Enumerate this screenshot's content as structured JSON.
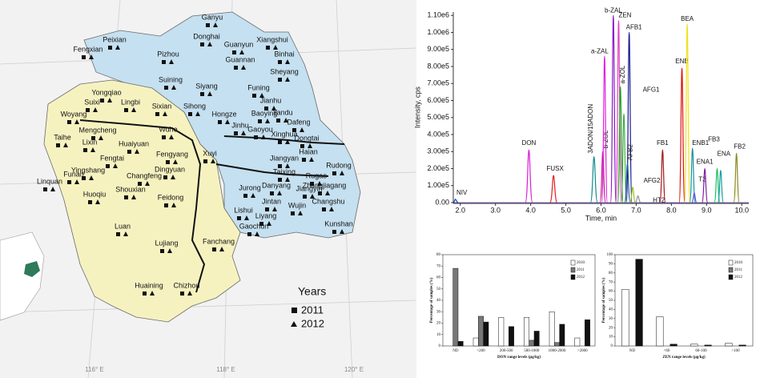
{
  "map": {
    "cities": [
      "Ganyu",
      "Peixian",
      "Donghai",
      "Guanyun",
      "Xiangshui",
      "Fengxian",
      "Pizhou",
      "Binhai",
      "Guannan",
      "Sheyang",
      "Funing",
      "Suining",
      "Siyang",
      "Jianhu",
      "Yongqiao",
      "Lingbi",
      "Suixi",
      "Yandu",
      "Dafeng",
      "Woyang",
      "Sixian",
      "Sihong",
      "Hongze",
      "Baoying",
      "Mengcheng",
      "Xinghua",
      "Taihe",
      "Wuhe",
      "Jinhu",
      "Gaoyou",
      "Dongtai",
      "Lixin",
      "Huaiyuan",
      "Xuyi",
      "Haian",
      "Fengtai",
      "Fengyang",
      "Jiangyan",
      "Rudong",
      "Linquan",
      "Yingshang",
      "Funan",
      "Dingyuan",
      "Taixing",
      "Rugao",
      "Changfeng",
      "Zhangjiagang",
      "Danyang",
      "Jiangyin",
      "Huoqiu",
      "Shouxian",
      "Jurong",
      "Changshu",
      "Feidong",
      "Jintan",
      "Wujin",
      "Lishui",
      "Liyang",
      "Kunshan",
      "Gaochun",
      "Luan",
      "Lujiang",
      "Fanchang",
      "Huaining",
      "Chizhou"
    ],
    "legend": {
      "title": "Years",
      "items": [
        "2011",
        "2012"
      ]
    },
    "longitudes": [
      "116° E",
      "118° E",
      "120° E"
    ]
  },
  "chart_data": [
    {
      "type": "line",
      "xlabel": "Time, min",
      "ylabel": "Intensity, cps",
      "xlim": [
        1.8,
        10.2
      ],
      "ylim": [
        0,
        1120000
      ],
      "xticks": [
        {
          "value": 2,
          "label": "2.0"
        },
        {
          "value": 3,
          "label": "3.0"
        },
        {
          "value": 4,
          "label": "4.0"
        },
        {
          "value": 5,
          "label": "5.0"
        },
        {
          "value": 6,
          "label": "6.0"
        },
        {
          "value": 7,
          "label": "7.0"
        },
        {
          "value": 8,
          "label": "8.0"
        },
        {
          "value": 9,
          "label": "9.0"
        },
        {
          "value": 10,
          "label": "10.0"
        }
      ],
      "yticks": [
        {
          "value": 0,
          "label": "0.00"
        },
        {
          "value": 100000,
          "label": "1.00e5"
        },
        {
          "value": 200000,
          "label": "2.00e5"
        },
        {
          "value": 300000,
          "label": "3.00e5"
        },
        {
          "value": 400000,
          "label": "4.00e5"
        },
        {
          "value": 500000,
          "label": "5.00e5"
        },
        {
          "value": 600000,
          "label": "6.00e5"
        },
        {
          "value": 700000,
          "label": "7.00e5"
        },
        {
          "value": 800000,
          "label": "8.00e5"
        },
        {
          "value": 900000,
          "label": "9.00e5"
        },
        {
          "value": 1000000,
          "label": "1.00e6"
        },
        {
          "value": 1100000,
          "label": "1.10e6"
        }
      ],
      "series": [
        {
          "name": "NIV",
          "color": "#1f3fbf",
          "x": [
            1.8,
            1.86,
            1.94
          ],
          "values": [
            0,
            20000,
            0
          ]
        },
        {
          "name": "DON",
          "color": "#d61fd6",
          "x": [
            3.85,
            3.95,
            4.05
          ],
          "values": [
            0,
            310000,
            0
          ]
        },
        {
          "name": "FUSX",
          "color": "#e02020",
          "x": [
            4.55,
            4.65,
            4.75
          ],
          "values": [
            0,
            160000,
            0
          ]
        },
        {
          "name": "3ADON/15ADON",
          "color": "#138a8a",
          "x": [
            5.7,
            5.8,
            5.9
          ],
          "values": [
            0,
            270000,
            0
          ]
        },
        {
          "name": "b-ZOL",
          "color": "#c01890",
          "x": [
            5.97,
            6.05,
            6.13
          ],
          "values": [
            0,
            300000,
            0
          ]
        },
        {
          "name": "a-ZAL",
          "color": "#e020e0",
          "x": [
            6.02,
            6.1,
            6.18
          ],
          "values": [
            0,
            860000,
            0
          ]
        },
        {
          "name": "b-ZAL",
          "color": "#8a18c8",
          "x": [
            6.27,
            6.35,
            6.43
          ],
          "values": [
            0,
            1100000,
            0
          ]
        },
        {
          "name": "ZEN",
          "color": "#e040c0",
          "x": [
            6.42,
            6.5,
            6.58
          ],
          "values": [
            0,
            1070000,
            0
          ]
        },
        {
          "name": "a-ZOL",
          "color": "#20a020",
          "x": [
            6.47,
            6.55,
            6.63
          ],
          "values": [
            0,
            680000,
            0
          ]
        },
        {
          "name": "AFB1",
          "color": "#1a1a90",
          "x": [
            6.72,
            6.8,
            6.88
          ],
          "values": [
            0,
            1000000,
            0
          ]
        },
        {
          "name": "AFG1",
          "color": "#40b040",
          "x": [
            6.57,
            6.65,
            6.73
          ],
          "values": [
            0,
            520000,
            0
          ]
        },
        {
          "name": "AFB2",
          "color": "#2060a0",
          "x": [
            6.67,
            6.75,
            6.83
          ],
          "values": [
            0,
            230000,
            0
          ]
        },
        {
          "name": "AFG2",
          "color": "#a0c020",
          "x": [
            6.82,
            6.9,
            6.98
          ],
          "values": [
            0,
            90000,
            0
          ]
        },
        {
          "name": "HT2",
          "color": "#909090",
          "x": [
            6.97,
            7.05,
            7.13
          ],
          "values": [
            0,
            40000,
            0
          ]
        },
        {
          "name": "FB1",
          "color": "#a01818",
          "x": [
            7.67,
            7.75,
            7.83
          ],
          "values": [
            0,
            310000,
            0
          ]
        },
        {
          "name": "ENB",
          "color": "#e01010",
          "x": [
            8.22,
            8.3,
            8.38
          ],
          "values": [
            0,
            790000,
            0
          ]
        },
        {
          "name": "BEA",
          "color": "#f0e020",
          "x": [
            8.37,
            8.45,
            8.53
          ],
          "values": [
            0,
            1050000,
            0
          ]
        },
        {
          "name": "ENB1",
          "color": "#1890a0",
          "x": [
            8.52,
            8.6,
            8.68
          ],
          "values": [
            0,
            320000,
            0
          ]
        },
        {
          "name": "T2",
          "color": "#6060e0",
          "x": [
            8.58,
            8.65,
            8.72
          ],
          "values": [
            0,
            60000,
            0
          ]
        },
        {
          "name": "ENA1",
          "color": "#8020a0",
          "x": [
            8.87,
            8.95,
            9.03
          ],
          "values": [
            0,
            200000,
            0
          ]
        },
        {
          "name": "FB3",
          "color": "#20c060",
          "x": [
            9.22,
            9.3,
            9.38
          ],
          "values": [
            0,
            200000,
            0
          ]
        },
        {
          "name": "ENA",
          "color": "#10a0a0",
          "x": [
            9.32,
            9.4,
            9.48
          ],
          "values": [
            0,
            190000,
            0
          ]
        },
        {
          "name": "FB2",
          "color": "#8a8a20",
          "x": [
            9.77,
            9.85,
            9.93
          ],
          "values": [
            0,
            290000,
            0
          ]
        }
      ]
    },
    {
      "type": "bar",
      "xlabel": "DON range levels (μg/kg)",
      "ylabel": "Percentage of samples (%)",
      "categories": [
        "ND",
        "<200",
        "200-500",
        "500-1000",
        "1000-2000",
        ">2000"
      ],
      "ylim": [
        0,
        80
      ],
      "yticks": [
        0,
        10,
        20,
        30,
        40,
        50,
        60,
        70,
        80
      ],
      "series": [
        {
          "name": "2010",
          "color": "#ffffff",
          "values": [
            0,
            7,
            25,
            25,
            30,
            7
          ]
        },
        {
          "name": "2011",
          "color": "#777777",
          "values": [
            68,
            26,
            0,
            5,
            3,
            0
          ]
        },
        {
          "name": "2012",
          "color": "#111111",
          "values": [
            4,
            21,
            17,
            13,
            19,
            23
          ]
        }
      ]
    },
    {
      "type": "bar",
      "xlabel": "ZEN range levels (μg/kg)",
      "ylabel": "Percentage of samples (%)",
      "categories": [
        "ND",
        "<60",
        "60-100",
        ">100"
      ],
      "ylim": [
        0,
        100
      ],
      "yticks": [
        0,
        10,
        20,
        30,
        40,
        50,
        60,
        70,
        80,
        90,
        100
      ],
      "series": [
        {
          "name": "2010",
          "color": "#ffffff",
          "values": [
            62,
            32,
            2,
            3
          ]
        },
        {
          "name": "2011",
          "color": "#777777",
          "values": [
            0,
            0,
            0,
            0
          ]
        },
        {
          "name": "2012",
          "color": "#111111",
          "values": [
            95,
            2,
            1,
            1
          ]
        }
      ]
    }
  ]
}
